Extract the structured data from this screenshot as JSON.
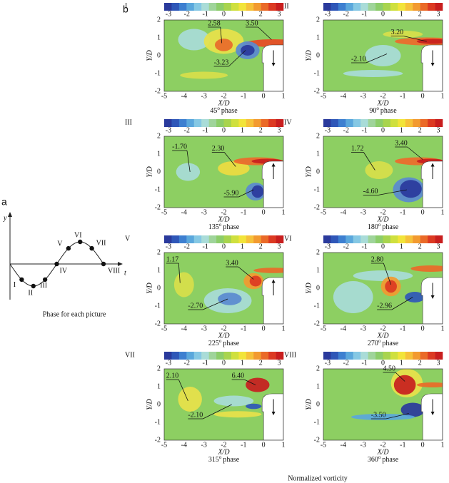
{
  "figure_labels": {
    "a": "a",
    "b": "b"
  },
  "phase_diagram": {
    "y_axis": "y",
    "x_axis": "t",
    "points": [
      "I",
      "II",
      "III",
      "IV",
      "V",
      "VI",
      "VII",
      "VIII"
    ],
    "caption": "Phase for each picture"
  },
  "colorbar_ticks": [
    "-3",
    "-2",
    "-1",
    "0",
    "1",
    "2",
    "3"
  ],
  "x_ticks": [
    "-5",
    "-4",
    "-3",
    "-2",
    "-1",
    "0",
    "1"
  ],
  "y_ticks": [
    "2",
    "1",
    "0",
    "-1",
    "-2"
  ],
  "x_label": "X/D",
  "y_label": "Y/D",
  "degree_mark": "o",
  "phase_word": "phase",
  "panels": [
    {
      "angle": "45",
      "annotations": [
        "2.58",
        "3.50",
        "-3.23"
      ]
    },
    {
      "angle": "90",
      "annotations": [
        "3.20",
        "-2.10"
      ]
    },
    {
      "angle": "135",
      "annotations": [
        "-1.70",
        "2.30",
        "-5.90"
      ]
    },
    {
      "angle": "180",
      "annotations": [
        "1.72",
        "3.40",
        "-4.60"
      ]
    },
    {
      "angle": "225",
      "annotations": [
        "1.17",
        "3.40",
        "-2.70"
      ]
    },
    {
      "angle": "270",
      "annotations": [
        "2.80",
        "-2.96"
      ]
    },
    {
      "angle": "315",
      "annotations": [
        "2.10",
        "6.40",
        "-2.10"
      ]
    },
    {
      "angle": "360",
      "annotations": [
        "4.50",
        "-3.50"
      ]
    }
  ],
  "footer": "Normalized vorticity"
}
